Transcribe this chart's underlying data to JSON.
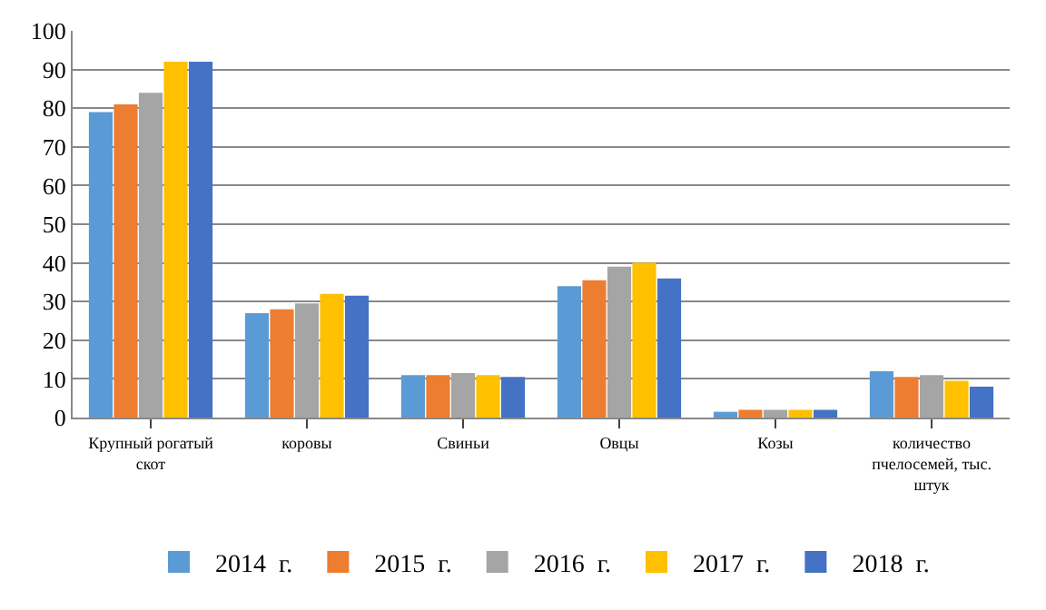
{
  "chart_data": {
    "type": "bar",
    "categories": [
      "Крупный рогатый\nскот",
      "коровы",
      "Свиньи",
      "Овцы",
      "Козы",
      "количество\nпчелосемей, тыс.\nштук"
    ],
    "series": [
      {
        "name": "2014  г.",
        "color": "#5b9bd5",
        "values": [
          79,
          27,
          11,
          34,
          1.5,
          12
        ]
      },
      {
        "name": "2015  г.",
        "color": "#ed7d31",
        "values": [
          81,
          28,
          11,
          35.5,
          2,
          10.5
        ]
      },
      {
        "name": "2016  г.",
        "color": "#a5a5a5",
        "values": [
          84,
          29.5,
          11.5,
          39,
          2,
          11
        ]
      },
      {
        "name": "2017  г.",
        "color": "#ffc000",
        "values": [
          92,
          32,
          11,
          40,
          2,
          9.5
        ]
      },
      {
        "name": "2018  г.",
        "color": "#4472c4",
        "values": [
          92,
          31.5,
          10.5,
          36,
          2,
          8
        ]
      }
    ],
    "ylim": [
      0,
      100
    ],
    "yticks": [
      0,
      10,
      20,
      30,
      40,
      50,
      60,
      70,
      80,
      90,
      100
    ],
    "grid": "y",
    "legend": "bottom"
  }
}
